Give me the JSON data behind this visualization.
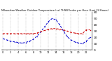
{
  "title": "Milwaukee Weather Outdoor Temperature (vs) THSW Index per Hour (Last 24 Hours)",
  "hours": [
    0,
    1,
    2,
    3,
    4,
    5,
    6,
    7,
    8,
    9,
    10,
    11,
    12,
    13,
    14,
    15,
    16,
    17,
    18,
    19,
    20,
    21,
    22,
    23
  ],
  "temp": [
    26,
    26,
    26,
    26,
    26,
    26,
    26,
    26,
    26,
    27,
    29,
    31,
    33,
    34,
    34,
    33,
    32,
    30,
    28,
    27,
    26,
    26,
    32,
    32
  ],
  "thsw": [
    18,
    16,
    14,
    13,
    12,
    11,
    12,
    14,
    17,
    22,
    29,
    37,
    45,
    50,
    48,
    40,
    30,
    21,
    16,
    13,
    11,
    10,
    14,
    20
  ],
  "temp_color": "#cc0000",
  "thsw_color": "#0000cc",
  "grid_color": "#888888",
  "bg_color": "#ffffff",
  "ylim": [
    0,
    60
  ],
  "ytick_values": [
    0,
    10,
    20,
    30,
    40,
    50,
    60
  ],
  "ytick_labels": [
    "0",
    "10",
    "20",
    "30",
    "40",
    "50",
    "60"
  ],
  "ylabel_fontsize": 3.2,
  "title_fontsize": 2.6,
  "xlabel_fontsize": 2.5,
  "line_width": 0.7,
  "marker_size": 1.0
}
